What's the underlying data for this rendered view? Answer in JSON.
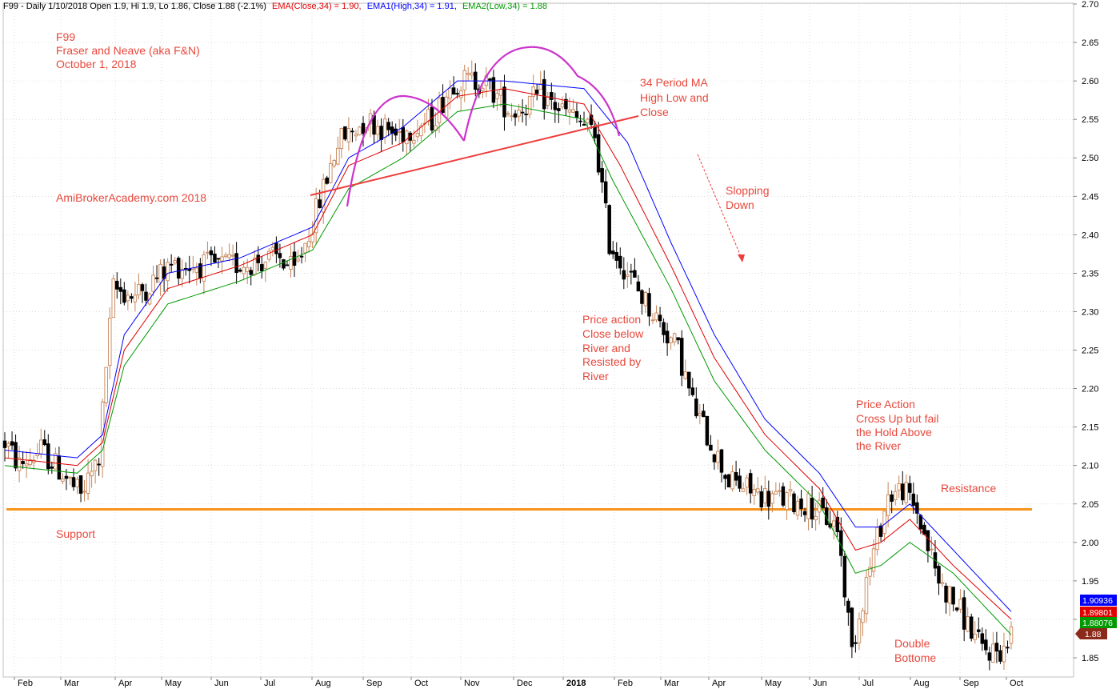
{
  "header": {
    "symbol_line": "F99 - Daily 1/10/2018 Open 1.9, Hi 1.9, Lo 1.86, Close 1.88 (-2.1%)",
    "ema_close": "EMA(Close,34) = 1.90,",
    "ema_high": "EMA1(High,34) = 1.91,",
    "ema_low": "EMA2(Low,34) = 1.88"
  },
  "colors": {
    "candle_up": "#c8865a",
    "candle_down": "#000000",
    "ema_close": "#e00000",
    "ema_high": "#0000ff",
    "ema_low": "#009900",
    "support_line": "#f7941d",
    "trend_line": "#ee3d3d",
    "arc": "#cc33cc",
    "annotation": "#e8483c",
    "grid": "#c8c8c8"
  },
  "annotations": {
    "title_lines": [
      "F99",
      "Fraser and Neave (aka F&N)",
      "October 1, 2018"
    ],
    "site": "AmiBrokerAcademy.com  2018",
    "ma_note": [
      "34 Period MA",
      "High Low and",
      "Close"
    ],
    "slopping": [
      "Slopping",
      "Down"
    ],
    "price_action_1": [
      "Price action",
      "Close below",
      "River and",
      "Resisted by",
      "River"
    ],
    "price_action_2": [
      "Price Action",
      "Cross Up but fail",
      "the Hold Above",
      "the River"
    ],
    "resistance": "Resistance",
    "support": "Support",
    "double": [
      "Double",
      "Bottome"
    ]
  },
  "chart_data": {
    "type": "candlestick",
    "title": "",
    "xlabel": "",
    "ylabel": "",
    "ylim": [
      1.84,
      2.7
    ],
    "y_ticks": [
      1.85,
      1.9,
      1.95,
      2.0,
      2.05,
      2.1,
      2.15,
      2.2,
      2.25,
      2.3,
      2.35,
      2.4,
      2.45,
      2.5,
      2.55,
      2.6,
      2.65,
      2.7
    ],
    "x_ticks": [
      "Feb",
      "Mar",
      "Apr",
      "May",
      "Jun",
      "Jul",
      "Aug",
      "Sep",
      "Oct",
      "Nov",
      "Dec",
      "2018",
      "Feb",
      "Mar",
      "Apr",
      "May",
      "Jun",
      "Jul",
      "Aug",
      "Sep",
      "Oct"
    ],
    "grid": true,
    "price_anchors": [
      [
        0,
        2.13
      ],
      [
        4,
        2.1
      ],
      [
        10,
        2.12
      ],
      [
        16,
        2.09
      ],
      [
        21,
        2.06
      ],
      [
        26,
        2.11
      ],
      [
        28,
        2.23
      ],
      [
        30,
        2.33
      ],
      [
        36,
        2.32
      ],
      [
        46,
        2.36
      ],
      [
        62,
        2.36
      ],
      [
        76,
        2.37
      ],
      [
        80,
        2.35
      ],
      [
        86,
        2.43
      ],
      [
        92,
        2.52
      ],
      [
        100,
        2.55
      ],
      [
        108,
        2.53
      ],
      [
        118,
        2.55
      ],
      [
        124,
        2.6
      ],
      [
        132,
        2.6
      ],
      [
        140,
        2.56
      ],
      [
        148,
        2.58
      ],
      [
        158,
        2.55
      ],
      [
        163,
        2.53
      ],
      [
        167,
        2.39
      ],
      [
        176,
        2.32
      ],
      [
        186,
        2.25
      ],
      [
        190,
        2.18
      ],
      [
        200,
        2.08
      ],
      [
        210,
        2.06
      ],
      [
        222,
        2.05
      ],
      [
        230,
        2.02
      ],
      [
        234,
        1.86
      ],
      [
        238,
        1.95
      ],
      [
        244,
        2.06
      ],
      [
        248,
        2.07
      ],
      [
        252,
        2.04
      ],
      [
        258,
        1.95
      ],
      [
        264,
        1.91
      ],
      [
        270,
        1.86
      ],
      [
        276,
        1.86
      ],
      [
        278,
        1.88
      ]
    ],
    "ema_close_anchors": [
      [
        0,
        2.11
      ],
      [
        20,
        2.1
      ],
      [
        27,
        2.13
      ],
      [
        33,
        2.25
      ],
      [
        45,
        2.33
      ],
      [
        65,
        2.36
      ],
      [
        85,
        2.4
      ],
      [
        95,
        2.49
      ],
      [
        110,
        2.52
      ],
      [
        125,
        2.58
      ],
      [
        138,
        2.59
      ],
      [
        160,
        2.57
      ],
      [
        170,
        2.49
      ],
      [
        184,
        2.36
      ],
      [
        196,
        2.24
      ],
      [
        210,
        2.14
      ],
      [
        225,
        2.07
      ],
      [
        235,
        1.99
      ],
      [
        242,
        2.0
      ],
      [
        250,
        2.03
      ],
      [
        262,
        1.97
      ],
      [
        278,
        1.9
      ]
    ],
    "ema_high_anchors": [
      [
        0,
        2.12
      ],
      [
        20,
        2.11
      ],
      [
        27,
        2.14
      ],
      [
        33,
        2.27
      ],
      [
        45,
        2.35
      ],
      [
        65,
        2.37
      ],
      [
        85,
        2.41
      ],
      [
        95,
        2.5
      ],
      [
        110,
        2.54
      ],
      [
        125,
        2.6
      ],
      [
        138,
        2.6
      ],
      [
        160,
        2.59
      ],
      [
        172,
        2.52
      ],
      [
        184,
        2.39
      ],
      [
        196,
        2.27
      ],
      [
        210,
        2.16
      ],
      [
        225,
        2.09
      ],
      [
        235,
        2.02
      ],
      [
        242,
        2.02
      ],
      [
        250,
        2.05
      ],
      [
        262,
        1.99
      ],
      [
        278,
        1.91
      ]
    ],
    "ema_low_anchors": [
      [
        0,
        2.1
      ],
      [
        20,
        2.09
      ],
      [
        27,
        2.12
      ],
      [
        33,
        2.23
      ],
      [
        45,
        2.31
      ],
      [
        65,
        2.34
      ],
      [
        85,
        2.38
      ],
      [
        95,
        2.46
      ],
      [
        110,
        2.5
      ],
      [
        125,
        2.56
      ],
      [
        138,
        2.57
      ],
      [
        160,
        2.55
      ],
      [
        168,
        2.47
      ],
      [
        184,
        2.33
      ],
      [
        196,
        2.21
      ],
      [
        210,
        2.12
      ],
      [
        225,
        2.05
      ],
      [
        235,
        1.96
      ],
      [
        242,
        1.97
      ],
      [
        250,
        2.0
      ],
      [
        262,
        1.96
      ],
      [
        278,
        1.88
      ]
    ],
    "support_level": 2.043,
    "badges": [
      {
        "text": "1.90936",
        "color": "#0000ff"
      },
      {
        "text": "1.89801",
        "color": "#e00000"
      },
      {
        "text": "1.88076",
        "color": "#009900"
      },
      {
        "text": "1.88",
        "color": "#8b2a1a"
      }
    ]
  }
}
